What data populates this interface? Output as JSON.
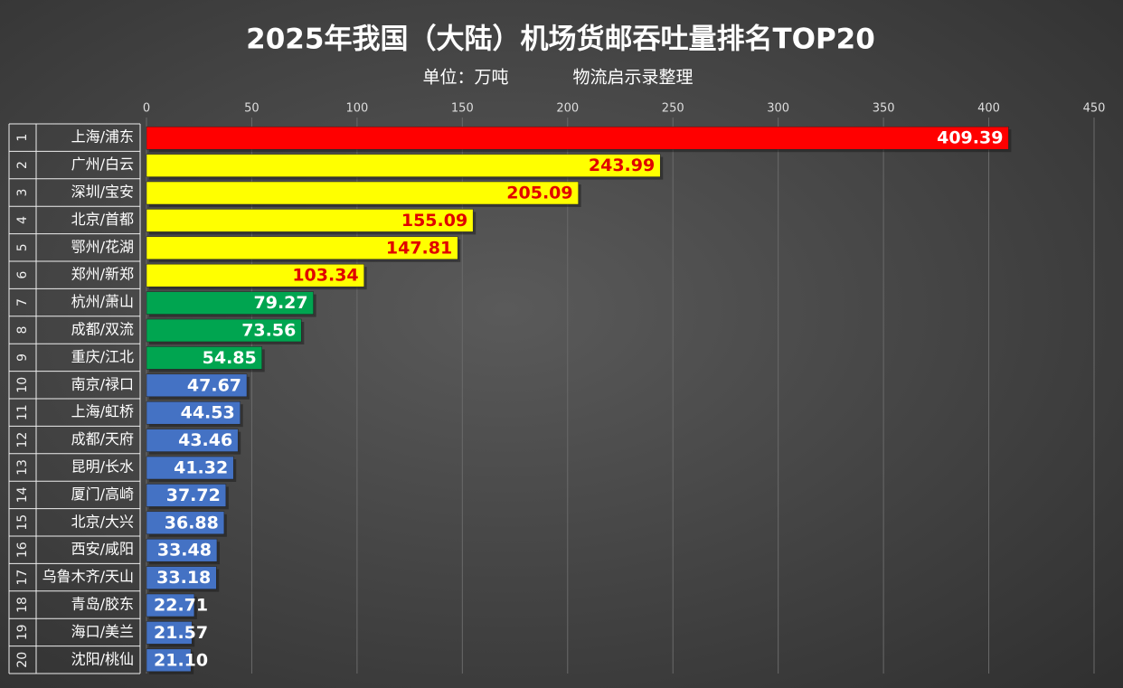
{
  "chart_data": {
    "type": "bar",
    "orientation": "horizontal",
    "title": "2025年我国（大陆）机场货邮吞吐量排名TOP20",
    "subtitle": "单位：万吨",
    "source": "物流启示录整理",
    "ranks": [
      1,
      2,
      3,
      4,
      5,
      6,
      7,
      8,
      9,
      10,
      11,
      12,
      13,
      14,
      15,
      16,
      17,
      18,
      19,
      20
    ],
    "categories": [
      "上海/浦东",
      "广州/白云",
      "深圳/宝安",
      "北京/首都",
      "鄂州/花湖",
      "郑州/新郑",
      "杭州/萧山",
      "成都/双流",
      "重庆/江北",
      "南京/禄口",
      "上海/虹桥",
      "成都/天府",
      "昆明/长水",
      "厦门/高崎",
      "北京/大兴",
      "西安/咸阳",
      "乌鲁木齐/天山",
      "青岛/胶东",
      "海口/美兰",
      "沈阳/桃仙"
    ],
    "values": [
      409.39,
      243.99,
      205.09,
      155.09,
      147.81,
      103.34,
      79.27,
      73.56,
      54.85,
      47.67,
      44.53,
      43.46,
      41.32,
      37.72,
      36.88,
      33.48,
      33.18,
      22.71,
      21.57,
      21.1
    ],
    "value_labels": [
      "409.39",
      "243.99",
      "205.09",
      "155.09",
      "147.81",
      "103.34",
      "79.27",
      "73.56",
      "54.85",
      "47.67",
      "44.53",
      "43.46",
      "41.32",
      "37.72",
      "36.88",
      "33.48",
      "33.18",
      "22.71",
      "21.57",
      "21.10"
    ],
    "colors": [
      "#ff0000",
      "#ffff00",
      "#ffff00",
      "#ffff00",
      "#ffff00",
      "#ffff00",
      "#00a550",
      "#00a550",
      "#00a550",
      "#4472c4",
      "#4472c4",
      "#4472c4",
      "#4472c4",
      "#4472c4",
      "#4472c4",
      "#4472c4",
      "#4472c4",
      "#4472c4",
      "#4472c4",
      "#4472c4"
    ],
    "label_colors": [
      "#ffffff",
      "#e00000",
      "#e00000",
      "#e00000",
      "#e00000",
      "#e00000",
      "#ffffff",
      "#ffffff",
      "#ffffff",
      "#ffffff",
      "#ffffff",
      "#ffffff",
      "#ffffff",
      "#ffffff",
      "#ffffff",
      "#ffffff",
      "#ffffff",
      "#ffffff",
      "#ffffff",
      "#ffffff"
    ],
    "xlim": [
      0,
      450
    ],
    "xticks": [
      0,
      50,
      100,
      150,
      200,
      250,
      300,
      350,
      400,
      450
    ],
    "grid": true
  }
}
